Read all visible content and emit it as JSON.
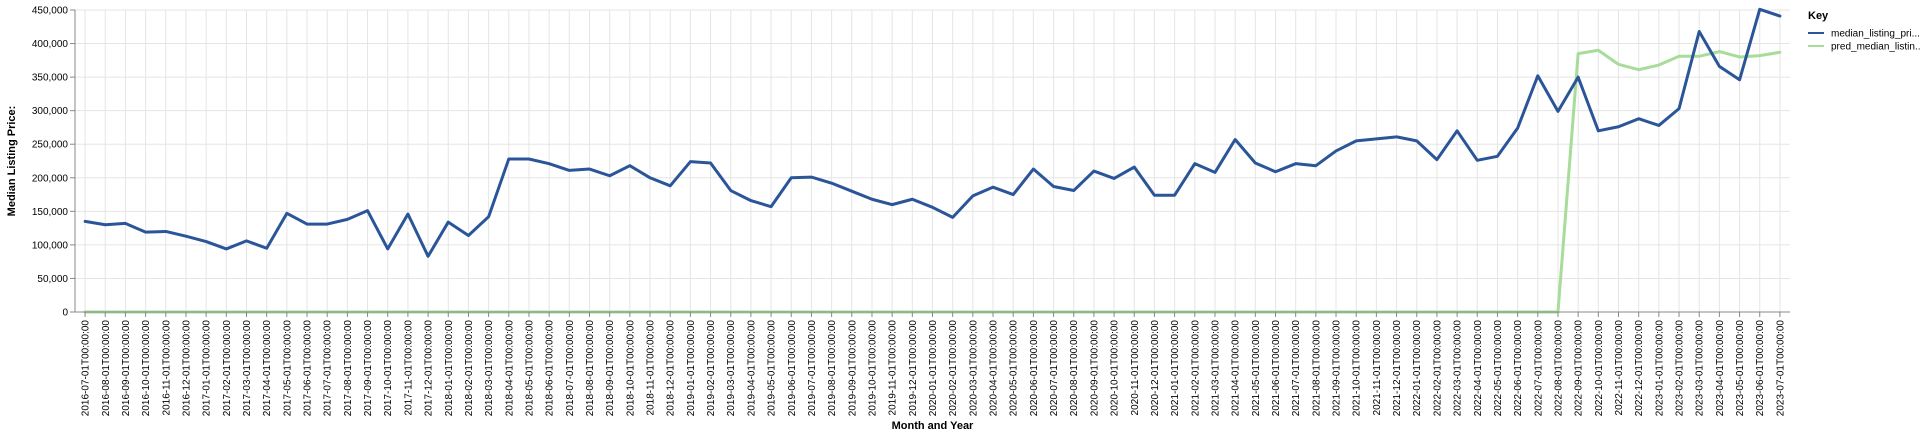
{
  "chart_data": {
    "type": "line",
    "xlabel": "Month and Year",
    "ylabel": "Median Listing Price:",
    "ylim": [
      0,
      450000
    ],
    "y_ticks": [
      "0",
      "50,000",
      "100,000",
      "150,000",
      "200,000",
      "250,000",
      "300,000",
      "350,000",
      "400,000",
      "450,000"
    ],
    "grid": true,
    "legend": {
      "title": "Key",
      "position": "right"
    },
    "colors": {
      "median_listing_price": "#2a5599",
      "pred_median_listing_price": "#a8dc9a",
      "grid": "#e5e5e5",
      "axis": "#888888"
    },
    "x": [
      "2016-07-01T00:00:00",
      "2016-08-01T00:00:00",
      "2016-09-01T00:00:00",
      "2016-10-01T00:00:00",
      "2016-11-01T00:00:00",
      "2016-12-01T00:00:00",
      "2017-01-01T00:00:00",
      "2017-02-01T00:00:00",
      "2017-03-01T00:00:00",
      "2017-04-01T00:00:00",
      "2017-05-01T00:00:00",
      "2017-06-01T00:00:00",
      "2017-07-01T00:00:00",
      "2017-08-01T00:00:00",
      "2017-09-01T00:00:00",
      "2017-10-01T00:00:00",
      "2017-11-01T00:00:00",
      "2017-12-01T00:00:00",
      "2018-01-01T00:00:00",
      "2018-02-01T00:00:00",
      "2018-03-01T00:00:00",
      "2018-04-01T00:00:00",
      "2018-05-01T00:00:00",
      "2018-06-01T00:00:00",
      "2018-07-01T00:00:00",
      "2018-08-01T00:00:00",
      "2018-09-01T00:00:00",
      "2018-10-01T00:00:00",
      "2018-11-01T00:00:00",
      "2018-12-01T00:00:00",
      "2019-01-01T00:00:00",
      "2019-02-01T00:00:00",
      "2019-03-01T00:00:00",
      "2019-04-01T00:00:00",
      "2019-05-01T00:00:00",
      "2019-06-01T00:00:00",
      "2019-07-01T00:00:00",
      "2019-08-01T00:00:00",
      "2019-09-01T00:00:00",
      "2019-10-01T00:00:00",
      "2019-11-01T00:00:00",
      "2019-12-01T00:00:00",
      "2020-01-01T00:00:00",
      "2020-02-01T00:00:00",
      "2020-03-01T00:00:00",
      "2020-04-01T00:00:00",
      "2020-05-01T00:00:00",
      "2020-06-01T00:00:00",
      "2020-07-01T00:00:00",
      "2020-08-01T00:00:00",
      "2020-09-01T00:00:00",
      "2020-10-01T00:00:00",
      "2020-11-01T00:00:00",
      "2020-12-01T00:00:00",
      "2021-01-01T00:00:00",
      "2021-02-01T00:00:00",
      "2021-03-01T00:00:00",
      "2021-04-01T00:00:00",
      "2021-05-01T00:00:00",
      "2021-06-01T00:00:00",
      "2021-07-01T00:00:00",
      "2021-08-01T00:00:00",
      "2021-09-01T00:00:00",
      "2021-10-01T00:00:00",
      "2021-11-01T00:00:00",
      "2021-12-01T00:00:00",
      "2022-01-01T00:00:00",
      "2022-02-01T00:00:00",
      "2022-03-01T00:00:00",
      "2022-04-01T00:00:00",
      "2022-05-01T00:00:00",
      "2022-06-01T00:00:00",
      "2022-07-01T00:00:00",
      "2022-08-01T00:00:00",
      "2022-09-01T00:00:00",
      "2022-10-01T00:00:00",
      "2022-11-01T00:00:00",
      "2022-12-01T00:00:00",
      "2023-01-01T00:00:00",
      "2023-02-01T00:00:00",
      "2023-03-01T00:00:00",
      "2023-04-01T00:00:00",
      "2023-05-01T00:00:00",
      "2023-06-01T00:00:00",
      "2023-07-01T00:00:00"
    ],
    "series": [
      {
        "name": "median_listing_pri...",
        "values": [
          135000,
          130000,
          132000,
          119000,
          120000,
          113000,
          105000,
          94000,
          106000,
          95000,
          147000,
          131000,
          131000,
          138000,
          151000,
          94000,
          146000,
          83000,
          134000,
          114000,
          142000,
          228000,
          228000,
          221000,
          211000,
          213000,
          203000,
          218000,
          200000,
          188000,
          224000,
          222000,
          181000,
          166000,
          157000,
          200000,
          201000,
          192000,
          180000,
          168000,
          160000,
          168000,
          156000,
          141000,
          173000,
          186000,
          175000,
          213000,
          187000,
          181000,
          210000,
          199000,
          216000,
          174000,
          174000,
          221000,
          208000,
          257000,
          222000,
          209000,
          221000,
          218000,
          240000,
          255000,
          258000,
          261000,
          255000,
          227000,
          270000,
          226000,
          232000,
          274000,
          352000,
          299000,
          350000,
          270000,
          276000,
          288000,
          278000,
          303000,
          418000,
          366000,
          346000,
          451000,
          441000
        ]
      },
      {
        "name": "pred_median_listin...",
        "values": [
          0,
          0,
          0,
          0,
          0,
          0,
          0,
          0,
          0,
          0,
          0,
          0,
          0,
          0,
          0,
          0,
          0,
          0,
          0,
          0,
          0,
          0,
          0,
          0,
          0,
          0,
          0,
          0,
          0,
          0,
          0,
          0,
          0,
          0,
          0,
          0,
          0,
          0,
          0,
          0,
          0,
          0,
          0,
          0,
          0,
          0,
          0,
          0,
          0,
          0,
          0,
          0,
          0,
          0,
          0,
          0,
          0,
          0,
          0,
          0,
          0,
          0,
          0,
          0,
          0,
          0,
          0,
          0,
          0,
          0,
          0,
          0,
          0,
          0,
          385000,
          390000,
          369000,
          361000,
          368000,
          381000,
          381000,
          388000,
          380000,
          382000,
          387000
        ]
      }
    ]
  }
}
